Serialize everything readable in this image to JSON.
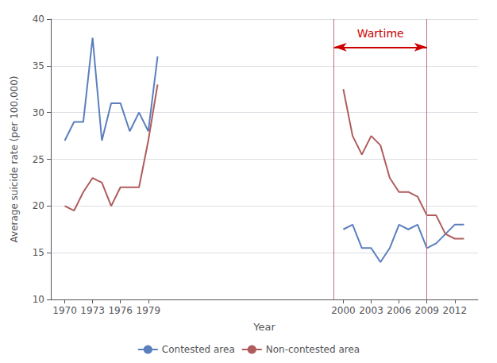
{
  "chart_data": {
    "type": "line",
    "xlabel": "Year",
    "ylabel": "Average suicide rate (per 100,000)",
    "x": [
      1970,
      1971,
      1972,
      1973,
      1974,
      1975,
      1976,
      1977,
      1978,
      1979,
      1980,
      null,
      2000,
      2001,
      2002,
      2003,
      2004,
      2005,
      2006,
      2007,
      2008,
      2009,
      2010,
      2011,
      2012,
      2013
    ],
    "series": [
      {
        "name": "Contested area",
        "color": "#5b7fbd",
        "values": [
          27,
          29,
          29,
          38,
          27,
          31,
          31,
          28,
          30,
          28,
          36,
          null,
          17.5,
          18,
          15.5,
          15.5,
          14,
          15.5,
          18,
          17.5,
          18,
          15.5,
          16,
          17,
          18,
          18
        ]
      },
      {
        "name": "Non-contested area",
        "color": "#b05c5c",
        "values": [
          20,
          19.5,
          21.5,
          23,
          22.5,
          20,
          22,
          22,
          22,
          27,
          33,
          null,
          32.5,
          27.5,
          25.5,
          27.5,
          26.5,
          23,
          21.5,
          21.5,
          21,
          19,
          19,
          17,
          16.5,
          16.5
        ]
      }
    ],
    "xlim": [
      1968.5,
      2014.5
    ],
    "xticks": [
      1970,
      1973,
      1976,
      1979,
      2000,
      2003,
      2006,
      2009,
      2012
    ],
    "ylim": [
      10,
      40
    ],
    "yticks": [
      10,
      15,
      20,
      25,
      30,
      35,
      40
    ],
    "grid": true,
    "legend": "bottom",
    "annotations": [
      {
        "type": "vline",
        "x": 1999,
        "color": "#c07080"
      },
      {
        "type": "vline",
        "x": 2009,
        "color": "#c07080"
      },
      {
        "type": "arrow",
        "x": [
          1999,
          2009
        ],
        "y": 37,
        "color": "#cc0000"
      },
      {
        "type": "text",
        "text": "Wartime",
        "x": 2004,
        "y": 38.5,
        "color": "#cc0000"
      }
    ]
  }
}
